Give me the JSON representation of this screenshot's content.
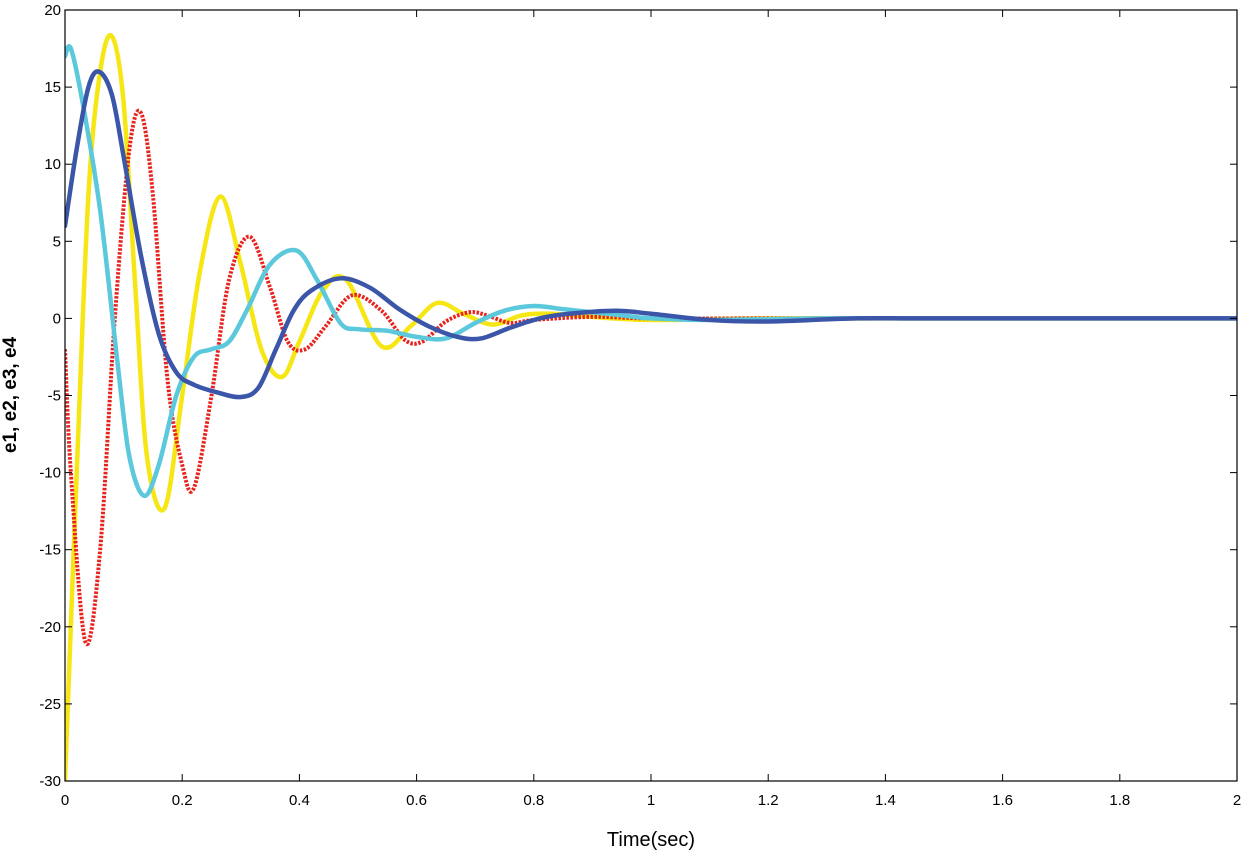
{
  "chart_data": {
    "type": "line",
    "title": "",
    "xlabel": "Time(sec)",
    "ylabel": "e1, e2, e3, e4",
    "xlim": [
      0,
      2
    ],
    "ylim": [
      -30,
      20
    ],
    "grid": false,
    "x_ticks": [
      0,
      0.2,
      0.4,
      0.6,
      0.8,
      1,
      1.2,
      1.4,
      1.6,
      1.8,
      2
    ],
    "x_tick_labels": [
      "0",
      "0.2",
      "0.4",
      "0.6",
      "0.8",
      "1",
      "1.2",
      "1.4",
      "1.6",
      "1.8",
      "2"
    ],
    "y_ticks": [
      -30,
      -25,
      -20,
      -15,
      -10,
      -5,
      0,
      5,
      10,
      15,
      20
    ],
    "y_tick_labels": [
      "-30",
      "-25",
      "-20",
      "-15",
      "-10",
      "-5",
      "0",
      "5",
      "10",
      "15",
      "20"
    ],
    "series": [
      {
        "color": "#f5e614",
        "style": "solid",
        "x": [
          0,
          0.02,
          0.04,
          0.06,
          0.08,
          0.1,
          0.12,
          0.14,
          0.17,
          0.2,
          0.23,
          0.265,
          0.3,
          0.335,
          0.37,
          0.4,
          0.44,
          0.48,
          0.54,
          0.59,
          0.635,
          0.68,
          0.73,
          0.78,
          0.83,
          0.9,
          1.0,
          1.2,
          1.5,
          2.0
        ],
        "y": [
          -30,
          -10,
          8,
          16,
          18.3,
          14,
          2,
          -9,
          -12.3,
          -5,
          3,
          7.9,
          3.5,
          -2,
          -3.8,
          -1.5,
          1.8,
          2.5,
          -1.8,
          -0.5,
          1.0,
          0.3,
          -0.4,
          0.2,
          0.3,
          0.1,
          -0.1,
          0,
          0,
          0
        ]
      },
      {
        "color": "#e8231e",
        "style": "dotted",
        "x": [
          0,
          0.01,
          0.035,
          0.06,
          0.085,
          0.11,
          0.13,
          0.15,
          0.175,
          0.2,
          0.22,
          0.25,
          0.28,
          0.315,
          0.35,
          0.38,
          0.41,
          0.445,
          0.49,
          0.54,
          0.58,
          0.61,
          0.65,
          0.69,
          0.72,
          0.76,
          0.8,
          0.9,
          1.0,
          1.2,
          1.5,
          2.0
        ],
        "y": [
          -2,
          -10,
          -21,
          -15,
          0,
          11,
          13.3,
          8,
          -4,
          -9.5,
          -11,
          -5,
          2.5,
          5.3,
          2,
          -1.5,
          -2,
          -0.5,
          1.5,
          0.5,
          -1.4,
          -1.5,
          -0.2,
          0.4,
          0.2,
          -0.3,
          -0.1,
          0.1,
          0,
          0,
          0,
          0
        ]
      },
      {
        "color": "#5cc8dc",
        "style": "solid",
        "x": [
          0,
          0.01,
          0.03,
          0.06,
          0.09,
          0.11,
          0.135,
          0.16,
          0.19,
          0.22,
          0.25,
          0.28,
          0.31,
          0.35,
          0.395,
          0.43,
          0.47,
          0.5,
          0.55,
          0.6,
          0.65,
          0.7,
          0.75,
          0.8,
          0.85,
          0.9,
          0.95,
          1.0,
          1.1,
          1.3,
          1.5,
          2.0
        ],
        "y": [
          17,
          17.5,
          14,
          7,
          -3,
          -9,
          -11.5,
          -9.5,
          -5,
          -2.5,
          -2,
          -1.5,
          0.5,
          3.5,
          4.4,
          2.5,
          -0.3,
          -0.7,
          -0.8,
          -1.2,
          -1.3,
          -0.3,
          0.5,
          0.8,
          0.6,
          0.4,
          0.2,
          0,
          -0.1,
          0,
          0,
          0
        ]
      },
      {
        "color": "#3b55a8",
        "style": "solid",
        "x": [
          0,
          0.02,
          0.04,
          0.058,
          0.08,
          0.1,
          0.13,
          0.16,
          0.19,
          0.22,
          0.26,
          0.3,
          0.33,
          0.36,
          0.39,
          0.42,
          0.47,
          0.52,
          0.57,
          0.62,
          0.67,
          0.71,
          0.76,
          0.81,
          0.86,
          0.94,
          1.0,
          1.1,
          1.2,
          1.35,
          1.5,
          2.0
        ],
        "y": [
          6,
          11,
          15,
          16,
          14.5,
          10.5,
          4,
          -1,
          -3.5,
          -4.3,
          -4.8,
          -5.1,
          -4.5,
          -2,
          0.5,
          1.8,
          2.6,
          2,
          0.6,
          -0.5,
          -1.2,
          -1.3,
          -0.6,
          0,
          0.3,
          0.5,
          0.3,
          -0.1,
          -0.2,
          0,
          0,
          0
        ]
      }
    ]
  }
}
